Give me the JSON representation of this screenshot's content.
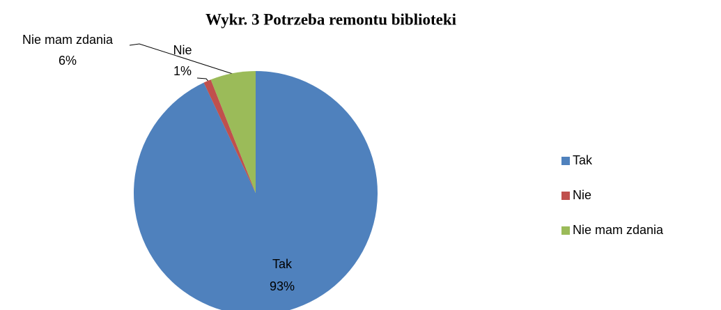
{
  "chart_data": {
    "type": "pie",
    "title": "Wykr. 3 Potrzeba remontu biblioteki",
    "categories": [
      "Tak",
      "Nie",
      "Nie mam zdania"
    ],
    "values": [
      93,
      1,
      6
    ],
    "value_labels": [
      "93%",
      "1%",
      "6%"
    ],
    "colors": [
      "#4f81bd",
      "#c0504d",
      "#9bbb59"
    ],
    "legend": "right"
  }
}
